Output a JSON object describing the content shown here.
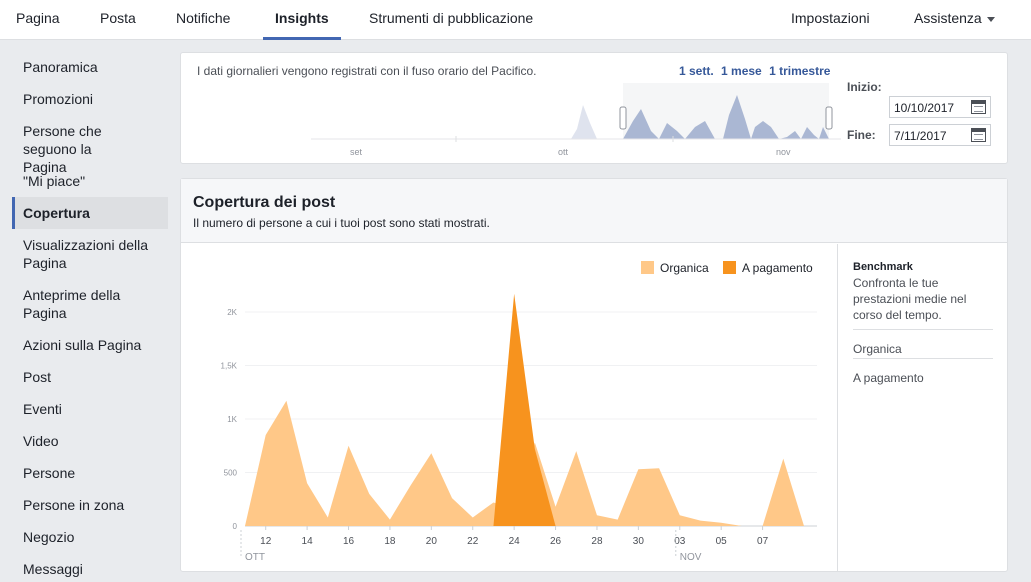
{
  "nav": {
    "items": [
      "Pagina",
      "Posta",
      "Notifiche",
      "Insights",
      "Strumenti di pubblicazione"
    ],
    "active": "Insights",
    "settings": "Impostazioni",
    "help": "Assistenza"
  },
  "sidebar": {
    "items": [
      "Panoramica",
      "Promozioni",
      "Persone che seguono la Pagina",
      "\"Mi piace\"",
      "Copertura",
      "Visualizzazioni della Pagina",
      "Anteprime della Pagina",
      "Azioni sulla Pagina",
      "Post",
      "Eventi",
      "Video",
      "Persone",
      "Persone in zona",
      "Negozio",
      "Messaggi"
    ],
    "active": "Copertura"
  },
  "date_range": {
    "timezone_note": "I dati giornalieri vengono registrati con il fuso orario del Pacifico.",
    "quick_ranges": [
      "1 sett.",
      "1 mese",
      "1 trimestre"
    ],
    "start_label": "Inizio:",
    "start_value": "10/10/2017",
    "end_label": "Fine:",
    "end_value": "7/11/2017",
    "mini_axis": [
      "set",
      "ott",
      "nov"
    ]
  },
  "reach": {
    "title": "Copertura dei post",
    "subtitle": "Il numero di persone a cui i tuoi post sono stati mostrati.",
    "legend": [
      "Organica",
      "A pagamento"
    ],
    "benchmark": {
      "title": "Benchmark",
      "description": "Confronta le tue prestazioni medie nel corso del tempo.",
      "rows": [
        "Organica",
        "A pagamento"
      ]
    }
  },
  "colors": {
    "accent": "#4267b2",
    "organic": "#ffc888",
    "paid": "#f7931e",
    "mini_area": "#aab7d3"
  },
  "chart_data": {
    "type": "area",
    "x": [
      "11",
      "12",
      "13",
      "14",
      "15",
      "16",
      "17",
      "18",
      "19",
      "20",
      "21",
      "22",
      "23",
      "24",
      "25",
      "26",
      "27",
      "28",
      "29",
      "30",
      "31",
      "01",
      "02",
      "03",
      "04",
      "05",
      "06",
      "07"
    ],
    "x_tick_labels": [
      "12",
      "14",
      "16",
      "18",
      "20",
      "22",
      "24",
      "26",
      "28",
      "30",
      "03",
      "05",
      "07"
    ],
    "month_labels": [
      "OTT",
      "NOV"
    ],
    "y_tick_labels": [
      "0",
      "500",
      "1K",
      "1,5K",
      "2K"
    ],
    "ylim": [
      0,
      2000
    ],
    "series": [
      {
        "name": "Organica",
        "values": [
          0,
          850,
          1170,
          400,
          80,
          750,
          300,
          60,
          380,
          680,
          260,
          80,
          220,
          160,
          780,
          180,
          700,
          100,
          60,
          530,
          540,
          100,
          50,
          30,
          0,
          0,
          630,
          0
        ]
      },
      {
        "name": "A pagamento",
        "values": [
          0,
          0,
          0,
          0,
          0,
          0,
          0,
          0,
          0,
          0,
          0,
          0,
          0,
          2170,
          720,
          0,
          0,
          0,
          0,
          0,
          0,
          0,
          0,
          0,
          0,
          0,
          0,
          0
        ]
      }
    ],
    "grid": true,
    "legend_position": "top-right"
  }
}
